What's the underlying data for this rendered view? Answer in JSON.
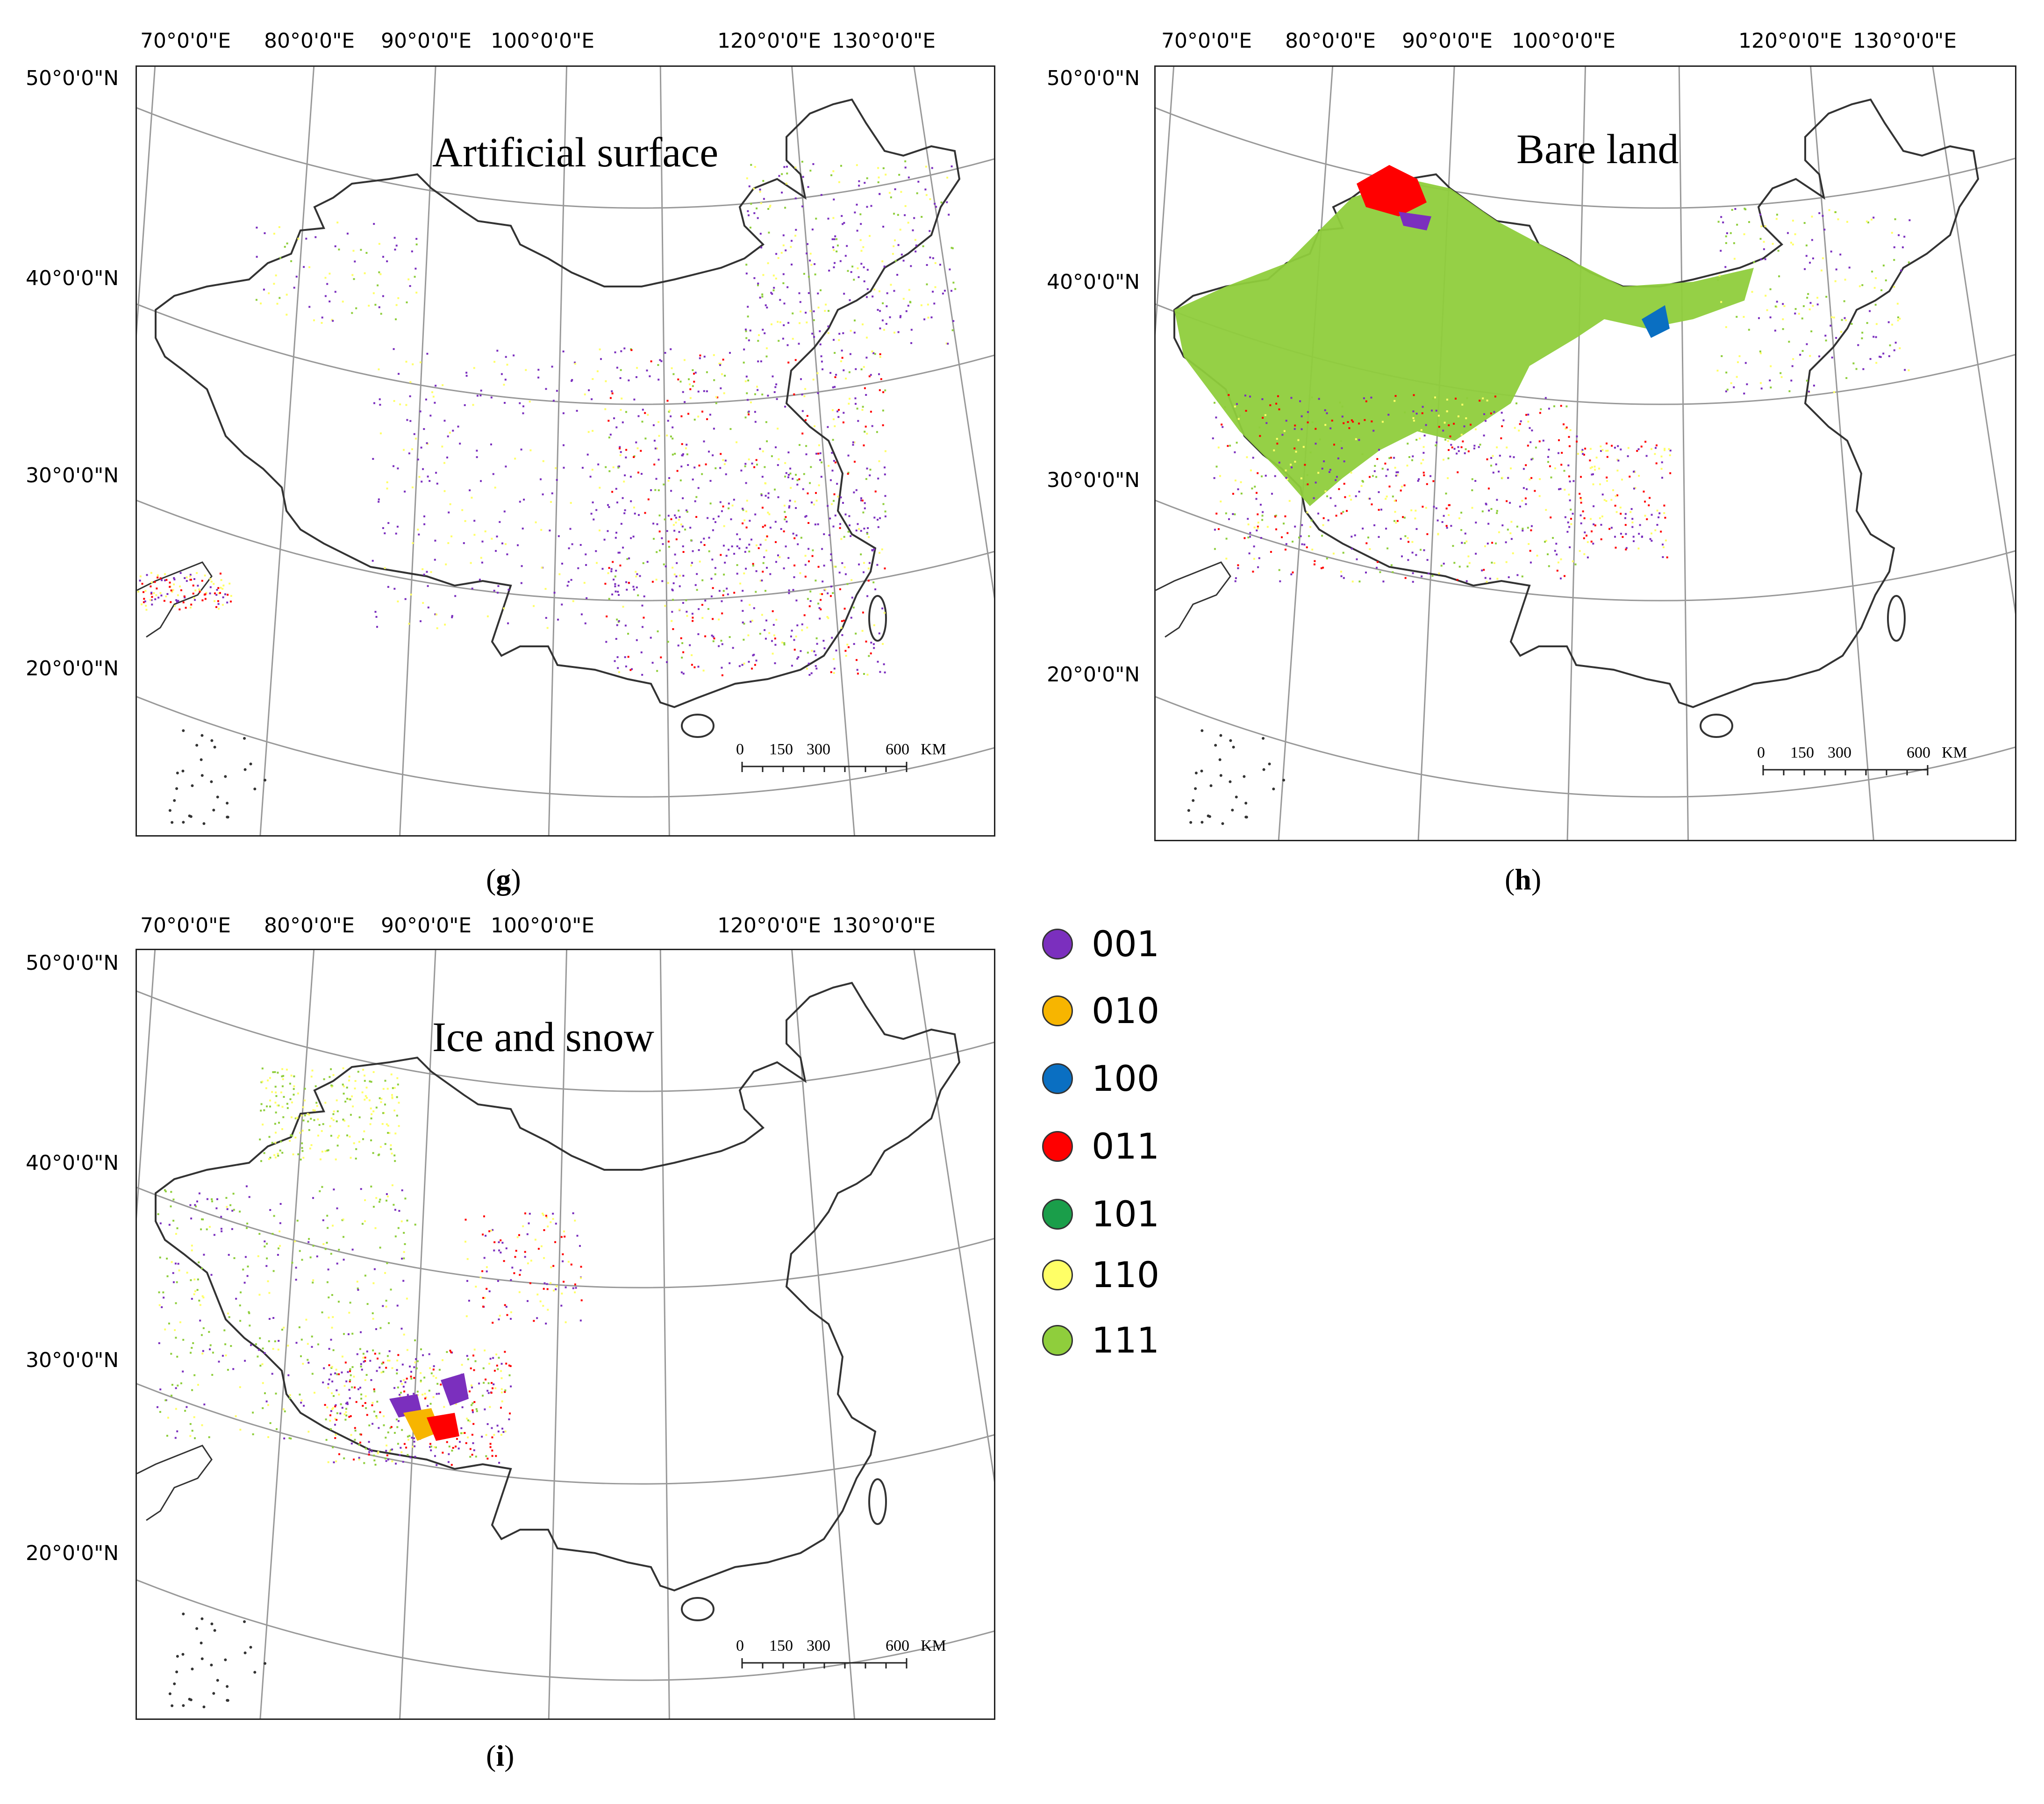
{
  "legend": [
    {
      "code": "001",
      "color": "#7b2fbe"
    },
    {
      "code": "010",
      "color": "#f7b500"
    },
    {
      "code": "100",
      "color": "#0a6fc2"
    },
    {
      "code": "011",
      "color": "#ff0000"
    },
    {
      "code": "101",
      "color": "#1a9e4a"
    },
    {
      "code": "110",
      "color": "#ffff66"
    },
    {
      "code": "111",
      "color": "#8fce3c"
    }
  ],
  "axes": {
    "lon_labels": [
      "70°0'0\"E",
      "80°0'0\"E",
      "90°0'0\"E",
      "100°0'0\"E",
      "120°0'0\"E",
      "130°0'0\"E"
    ],
    "lat_labels": [
      "50°0'0\"N",
      "40°0'0\"N",
      "30°0'0\"N",
      "20°0'0\"N"
    ]
  },
  "scale": {
    "labels": [
      "0",
      "150",
      "300",
      "600"
    ],
    "unit": "KM"
  },
  "panels": [
    {
      "id": "g",
      "title": "Artificial surface",
      "caption_letter": "g",
      "dominant": "scatter-east"
    },
    {
      "id": "h",
      "title": "Bare land",
      "caption_letter": "h",
      "dominant": "northwest-green"
    },
    {
      "id": "i",
      "title": "Ice and snow",
      "caption_letter": "i",
      "dominant": "tibet-patches"
    }
  ]
}
